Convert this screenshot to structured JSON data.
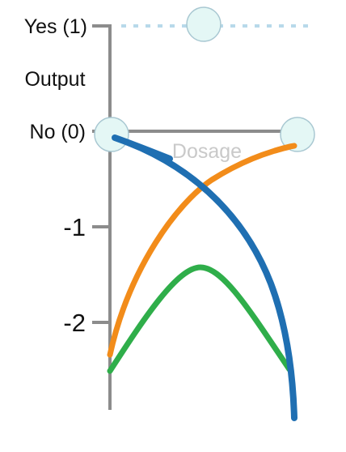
{
  "figure": {
    "y_labels": {
      "yes": "Yes (1)",
      "output": "Output",
      "no": "No (0)",
      "minus_one": "-1",
      "minus_two": "-2"
    },
    "x_label": "Dosage",
    "colors": {
      "axis": "#8c8c8c",
      "dotted_line": "#b8d9ea",
      "node_fill": "#e4f7f5",
      "node_stroke": "#a9c8d2",
      "blue_curve": "#1f6fb2",
      "orange_curve": "#f28c1a",
      "green_curve": "#2fae4a",
      "dosage_text": "#c9c9c9"
    }
  }
}
